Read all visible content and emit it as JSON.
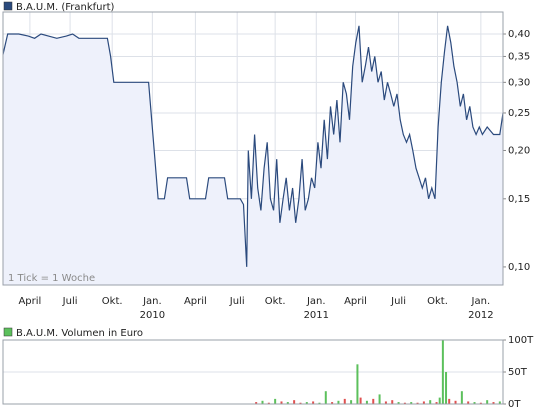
{
  "chart_data": [
    {
      "type": "line",
      "legend": "B.A.U.M. (Frankfurt)",
      "annotation": "1 Tick = 1 Woche",
      "color": "#2b4a7d",
      "fill": "#eef1fb",
      "log_y": true,
      "grid": true,
      "x": [
        0,
        1.5,
        5,
        8,
        10,
        12,
        17,
        20,
        22,
        24,
        33,
        34,
        35,
        46,
        48,
        49,
        51,
        52,
        58,
        59,
        64,
        65,
        70,
        71,
        75,
        76,
        77,
        77.5,
        78.5,
        79.5,
        80.5,
        81.5,
        82.5,
        83.5,
        84.5,
        85.5,
        86.5,
        87.5,
        88.5,
        89.5,
        90.5,
        91.5,
        92.5,
        93.5,
        94.5,
        95.5,
        96.5,
        97.5,
        98.5,
        99.5,
        100.5,
        101.5,
        102.5,
        103.5,
        104.5,
        105.5,
        106.5,
        107.5,
        108.5,
        109.5,
        110.5,
        111.5,
        112.5,
        113.5,
        114.5,
        115.5,
        116.5,
        117.5,
        118.5,
        119.5,
        120.5,
        121.5,
        122.5,
        123.5,
        124.5,
        125.5,
        126.5,
        127.5,
        128.5,
        129.5,
        130.5,
        131.5,
        132.5,
        133.5,
        134.5,
        135.5,
        136.5,
        137.5,
        138.5,
        139.5,
        140.5,
        141.5,
        142.5,
        143.5,
        144.5,
        145.5,
        146.5,
        147.5,
        148.5,
        149.5,
        150.5,
        151.5,
        153,
        155,
        157,
        158
      ],
      "values": [
        0.354,
        0.4,
        0.4,
        0.395,
        0.39,
        0.4,
        0.39,
        0.395,
        0.4,
        0.39,
        0.39,
        0.35,
        0.3,
        0.3,
        0.19,
        0.15,
        0.15,
        0.17,
        0.17,
        0.15,
        0.15,
        0.17,
        0.17,
        0.15,
        0.15,
        0.145,
        0.1,
        0.2,
        0.15,
        0.22,
        0.16,
        0.14,
        0.18,
        0.21,
        0.15,
        0.14,
        0.19,
        0.13,
        0.15,
        0.17,
        0.14,
        0.16,
        0.13,
        0.15,
        0.19,
        0.14,
        0.15,
        0.17,
        0.16,
        0.21,
        0.18,
        0.24,
        0.19,
        0.26,
        0.22,
        0.27,
        0.21,
        0.3,
        0.28,
        0.24,
        0.33,
        0.38,
        0.42,
        0.3,
        0.33,
        0.37,
        0.32,
        0.35,
        0.3,
        0.32,
        0.27,
        0.3,
        0.28,
        0.26,
        0.28,
        0.24,
        0.22,
        0.21,
        0.22,
        0.2,
        0.18,
        0.17,
        0.16,
        0.17,
        0.15,
        0.16,
        0.15,
        0.23,
        0.3,
        0.36,
        0.42,
        0.38,
        0.33,
        0.3,
        0.26,
        0.28,
        0.24,
        0.26,
        0.23,
        0.22,
        0.23,
        0.22,
        0.23,
        0.22,
        0.22,
        0.25
      ],
      "xlim": [
        0,
        158
      ],
      "xticks": [
        {
          "value": 8.5,
          "label": "April"
        },
        {
          "value": 21.2,
          "label": "Juli"
        },
        {
          "value": 34.5,
          "label": "Okt."
        },
        {
          "value": 47.2,
          "label": "Jan."
        },
        {
          "value": 60.8,
          "label": "April"
        },
        {
          "value": 74,
          "label": "Juli"
        },
        {
          "value": 86,
          "label": "Okt."
        },
        {
          "value": 99,
          "label": "Jan."
        },
        {
          "value": 111.4,
          "label": "April"
        },
        {
          "value": 125,
          "label": "Juli"
        },
        {
          "value": 137.3,
          "label": "Okt."
        },
        {
          "value": 151,
          "label": "Jan."
        }
      ],
      "year_labels": [
        {
          "value": 47.2,
          "label": "2010"
        },
        {
          "value": 99,
          "label": "2011"
        },
        {
          "value": 151,
          "label": "2012"
        }
      ],
      "ylim": [
        0.0898,
        0.456
      ],
      "yticks": [
        {
          "value": 0.1,
          "label": "0,10"
        },
        {
          "value": 0.15,
          "label": "0,15"
        },
        {
          "value": 0.2,
          "label": "0,20"
        },
        {
          "value": 0.25,
          "label": "0,25"
        },
        {
          "value": 0.3,
          "label": "0,30"
        },
        {
          "value": 0.35,
          "label": "0,35"
        },
        {
          "value": 0.4,
          "label": "0,40"
        }
      ]
    },
    {
      "type": "bar",
      "legend": "B.A.U.M. Volumen in Euro",
      "color": "#5cc05c",
      "grid": true,
      "x": [
        80,
        82,
        84,
        86,
        88,
        90,
        92,
        94,
        96,
        98,
        100,
        102,
        104,
        106,
        108,
        110,
        112,
        113,
        115,
        117,
        119,
        121,
        123,
        125,
        127,
        129,
        131,
        133,
        135,
        137,
        138,
        139,
        140,
        141,
        143,
        145,
        147,
        149,
        151,
        153,
        155,
        157
      ],
      "values": [
        3000,
        5000,
        2000,
        8000,
        4000,
        3000,
        6000,
        2000,
        3000,
        4000,
        2000,
        20000,
        3000,
        5000,
        8000,
        6000,
        62000,
        10000,
        5000,
        8000,
        15000,
        4000,
        6000,
        3000,
        2000,
        3000,
        2000,
        4000,
        6000,
        3000,
        10000,
        100000,
        50000,
        8000,
        5000,
        20000,
        4000,
        3000,
        2000,
        6000,
        3000,
        4000
      ],
      "bar_colors": [
        "#e05050",
        "#5cc05c",
        "#e05050",
        "#5cc05c",
        "#e05050",
        "#5cc05c",
        "#e05050",
        "#e05050",
        "#5cc05c",
        "#e05050",
        "#5cc05c",
        "#5cc05c",
        "#e05050",
        "#5cc05c",
        "#e05050",
        "#5cc05c",
        "#5cc05c",
        "#e05050",
        "#5cc05c",
        "#e05050",
        "#5cc05c",
        "#e05050",
        "#e05050",
        "#5cc05c",
        "#e05050",
        "#5cc05c",
        "#e05050",
        "#e05050",
        "#5cc05c",
        "#e05050",
        "#5cc05c",
        "#5cc05c",
        "#5cc05c",
        "#e05050",
        "#e05050",
        "#5cc05c",
        "#e05050",
        "#5cc05c",
        "#e05050",
        "#5cc05c",
        "#e05050",
        "#5cc05c"
      ],
      "xlim": [
        0,
        158
      ],
      "ylim": [
        0,
        100000
      ],
      "yticks": [
        {
          "value": 0,
          "label": "0T"
        },
        {
          "value": 50000,
          "label": "50T"
        },
        {
          "value": 100000,
          "label": "100T"
        }
      ]
    }
  ]
}
